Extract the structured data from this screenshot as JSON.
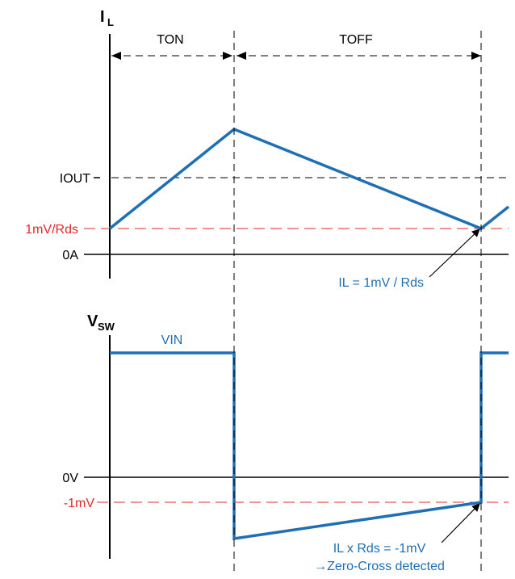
{
  "current_plot": {
    "axis_title": "I",
    "axis_subscript": "L",
    "levels": {
      "iout": "IOUT",
      "threshold": "1mV/Rds",
      "zero": "0A"
    },
    "intervals": {
      "on": "TON",
      "off": "TOFF"
    },
    "annotation": "IL = 1mV / Rds"
  },
  "voltage_plot": {
    "axis_title": "V",
    "axis_subscript": "SW",
    "input_label": "VIN",
    "levels": {
      "zero": "0V",
      "threshold": "-1mV"
    },
    "annotation_line1": "IL x Rds = -1mV",
    "annotation_line2": "→Zero-Cross detected"
  },
  "colors": {
    "waveform": "#1f6fb5",
    "threshold": "#e02a2a",
    "axes": "#000000"
  }
}
